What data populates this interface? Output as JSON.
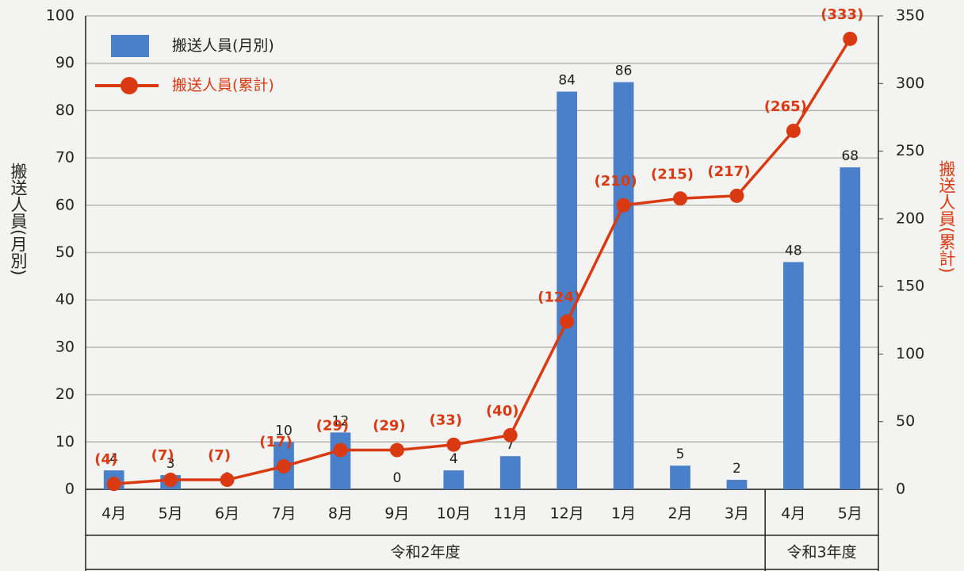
{
  "chart_data": {
    "type": "bar",
    "y_label": "搬送人員(月別)",
    "y2_label": "搬送人員(累計)",
    "categories": [
      "4月",
      "5月",
      "6月",
      "7月",
      "8月",
      "9月",
      "10月",
      "11月",
      "12月",
      "1月",
      "2月",
      "3月",
      "4月",
      "5月"
    ],
    "groups": [
      {
        "label": "令和2年度",
        "count": 12
      },
      {
        "label": "令和3年度",
        "count": 2
      }
    ],
    "series": [
      {
        "name": "搬送人員(月別)",
        "type": "bar",
        "color": "#4a7fc9",
        "values": [
          4,
          3,
          0,
          10,
          12,
          0,
          4,
          7,
          84,
          86,
          5,
          2,
          48,
          68
        ]
      },
      {
        "name": "搬送人員(累計)",
        "type": "line",
        "axis": "y2",
        "color": "#d93a12",
        "values": [
          4,
          7,
          7,
          17,
          29,
          29,
          33,
          40,
          124,
          210,
          215,
          217,
          265,
          333
        ],
        "value_labels": [
          "(4)",
          "(7)",
          "(7)",
          "(17)",
          "(29)",
          "(29)",
          "(33)",
          "(40)",
          "(124)",
          "(210)",
          "(215)",
          "(217)",
          "(265)",
          "(333)"
        ]
      }
    ],
    "ylim": [
      0,
      100
    ],
    "yticks": [
      0,
      10,
      20,
      30,
      40,
      50,
      60,
      70,
      80,
      90,
      100
    ],
    "y2lim": [
      0,
      350
    ],
    "y2ticks": [
      0,
      50,
      100,
      150,
      200,
      250,
      300,
      350
    ],
    "grid": true,
    "legend": "upper left"
  }
}
